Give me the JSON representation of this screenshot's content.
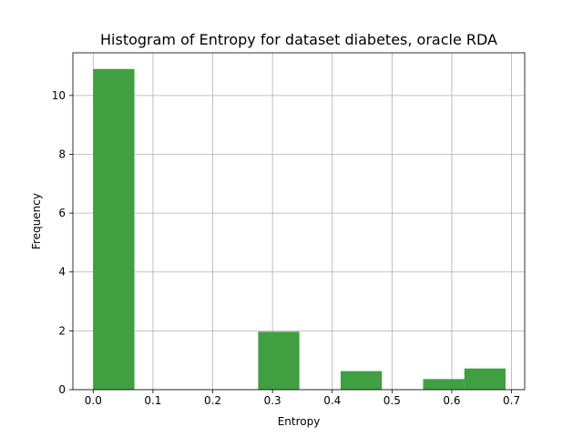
{
  "chart_data": {
    "type": "bar",
    "title": "Histogram of Entropy for dataset diabetes, oracle RDA",
    "xlabel": "Entropy",
    "ylabel": "Frequency",
    "xlim": [
      -0.034,
      0.722
    ],
    "ylim": [
      0,
      11.45
    ],
    "xticks": [
      0.0,
      0.1,
      0.2,
      0.3,
      0.4,
      0.5,
      0.6,
      0.7
    ],
    "xtick_labels": [
      "0.0",
      "0.1",
      "0.2",
      "0.3",
      "0.4",
      "0.5",
      "0.6",
      "0.7"
    ],
    "yticks": [
      0,
      2,
      4,
      6,
      8,
      10
    ],
    "ytick_labels": [
      "0",
      "2",
      "4",
      "6",
      "8",
      "10"
    ],
    "grid": true,
    "bar_color": "#409f40",
    "bins": [
      {
        "x0": 0.0,
        "x1": 0.069,
        "value": 10.9
      },
      {
        "x0": 0.069,
        "x1": 0.138,
        "value": 0
      },
      {
        "x0": 0.138,
        "x1": 0.207,
        "value": 0
      },
      {
        "x0": 0.207,
        "x1": 0.276,
        "value": 0
      },
      {
        "x0": 0.276,
        "x1": 0.345,
        "value": 1.97
      },
      {
        "x0": 0.345,
        "x1": 0.414,
        "value": 0
      },
      {
        "x0": 0.414,
        "x1": 0.483,
        "value": 0.63
      },
      {
        "x0": 0.483,
        "x1": 0.552,
        "value": 0
      },
      {
        "x0": 0.552,
        "x1": 0.621,
        "value": 0.36
      },
      {
        "x0": 0.621,
        "x1": 0.69,
        "value": 0.72
      }
    ]
  }
}
